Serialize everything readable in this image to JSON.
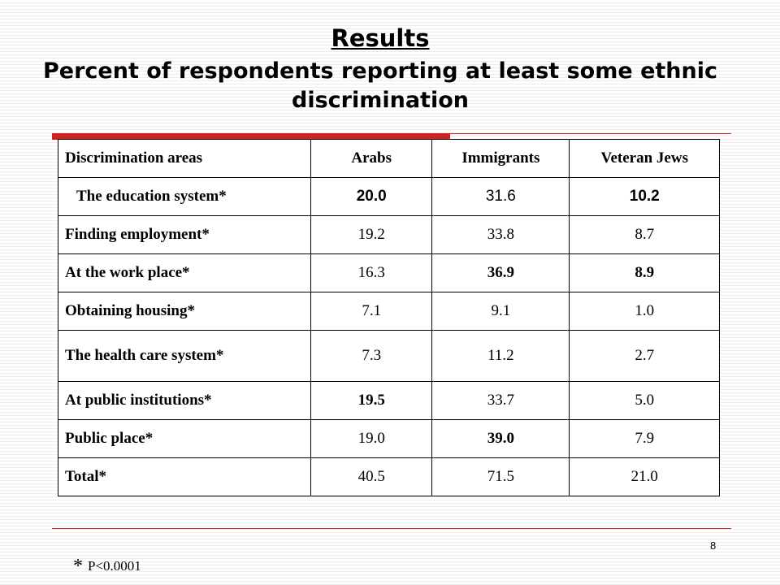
{
  "title": "Results",
  "subtitle": "Percent of respondents reporting at least some ethnic discrimination",
  "table": {
    "headers": [
      "Discrimination areas",
      "Arabs",
      "Immigrants",
      "Veteran Jews"
    ],
    "rows": [
      {
        "area": "The education system*",
        "arabs": "20.0",
        "immigrants": "31.6",
        "veteran_jews": "10.2"
      },
      {
        "area": "Finding employment*",
        "arabs": "19.2",
        "immigrants": "33.8",
        "veteran_jews": "8.7"
      },
      {
        "area": "At the work place*",
        "arabs": "16.3",
        "immigrants": "36.9",
        "veteran_jews": "8.9"
      },
      {
        "area": "Obtaining housing*",
        "arabs": "7.1",
        "immigrants": "9.1",
        "veteran_jews": "1.0"
      },
      {
        "area": "The health care system*",
        "arabs": "7.3",
        "immigrants": "11.2",
        "veteran_jews": "2.7"
      },
      {
        "area": "At public institutions*",
        "arabs": "19.5",
        "immigrants": "33.7",
        "veteran_jews": "5.0"
      },
      {
        "area": "Public place*",
        "arabs": "19.0",
        "immigrants": "39.0",
        "veteran_jews": "7.9"
      },
      {
        "area": "Total*",
        "arabs": "40.5",
        "immigrants": "71.5",
        "veteran_jews": "21.0"
      }
    ]
  },
  "page_number": "8",
  "footnote": {
    "symbol": "*",
    "text": "P<0.0001"
  },
  "colors": {
    "accent": "#cc2222"
  }
}
